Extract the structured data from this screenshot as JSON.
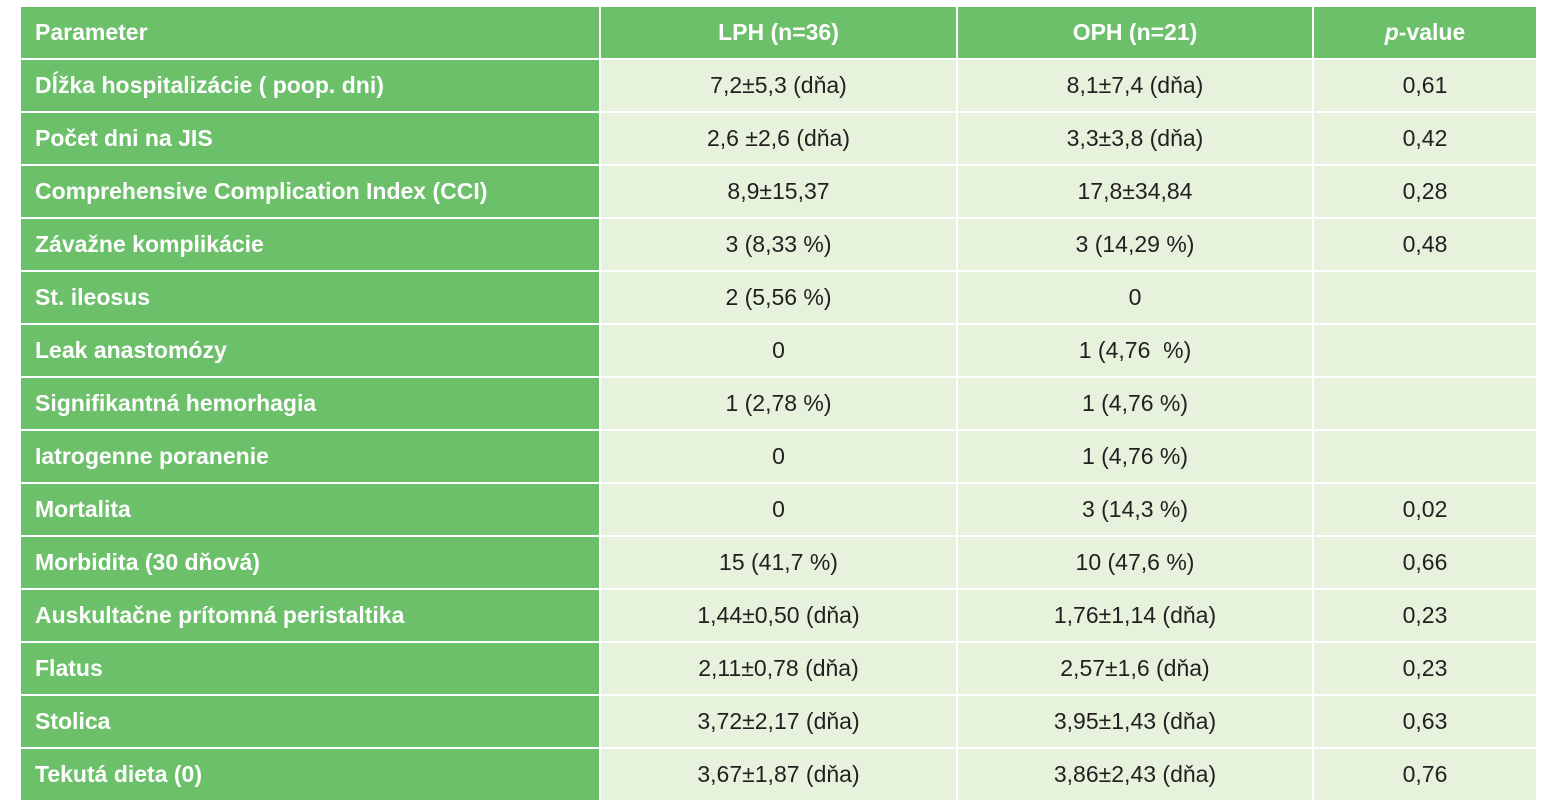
{
  "table": {
    "header": [
      "Parameter",
      "LPH (n=36)",
      "OPH (n=21)",
      [
        "p",
        "-value"
      ]
    ],
    "rows": [
      [
        "Dĺžka hospitalizácie ( poop. dni)",
        "7,2±5,3 (dňa)",
        "8,1±7,4 (dňa)",
        "0,61"
      ],
      [
        "Počet dni na JIS",
        "2,6 ±2,6 (dňa)",
        "3,3±3,8 (dňa)",
        "0,42"
      ],
      [
        "Comprehensive Complication Index (CCI)",
        "8,9±15,37",
        "17,8±34,84",
        "0,28"
      ],
      [
        "Závažne komplikácie",
        "3 (8,33 %)",
        "3 (14,29 %)",
        "0,48"
      ],
      [
        "St. ileosus",
        "2 (5,56 %)",
        "0"
      ],
      [
        "Leak anastomózy",
        "0",
        "1 (4,76  %)"
      ],
      [
        "Signifikantná hemorhagia",
        "1 (2,78 %)",
        "1 (4,76 %)"
      ],
      [
        "Iatrogenne poranenie",
        "0",
        "1 (4,76 %)"
      ],
      [
        "Mortalita",
        "0",
        "3 (14,3 %)",
        "0,02"
      ],
      [
        "Morbidita (30 dňová)",
        "15 (41,7 %)",
        "10 (47,6 %)",
        "0,66"
      ],
      [
        "Auskultačne prítomná peristaltika",
        "1,44±0,50 (dňa)",
        "1,76±1,14 (dňa)",
        "0,23"
      ],
      [
        "Flatus",
        "2,11±0,78 (dňa)",
        "2,57±1,6 (dňa)",
        "0,23"
      ],
      [
        "Stolica",
        "3,72±2,17 (dňa)",
        "3,95±1,43 (dňa)",
        "0,63"
      ],
      [
        "Tekutá dieta (0)",
        "3,67±1,87 (dňa)",
        "3,86±2,43 (dňa)",
        "0,76"
      ]
    ]
  }
}
